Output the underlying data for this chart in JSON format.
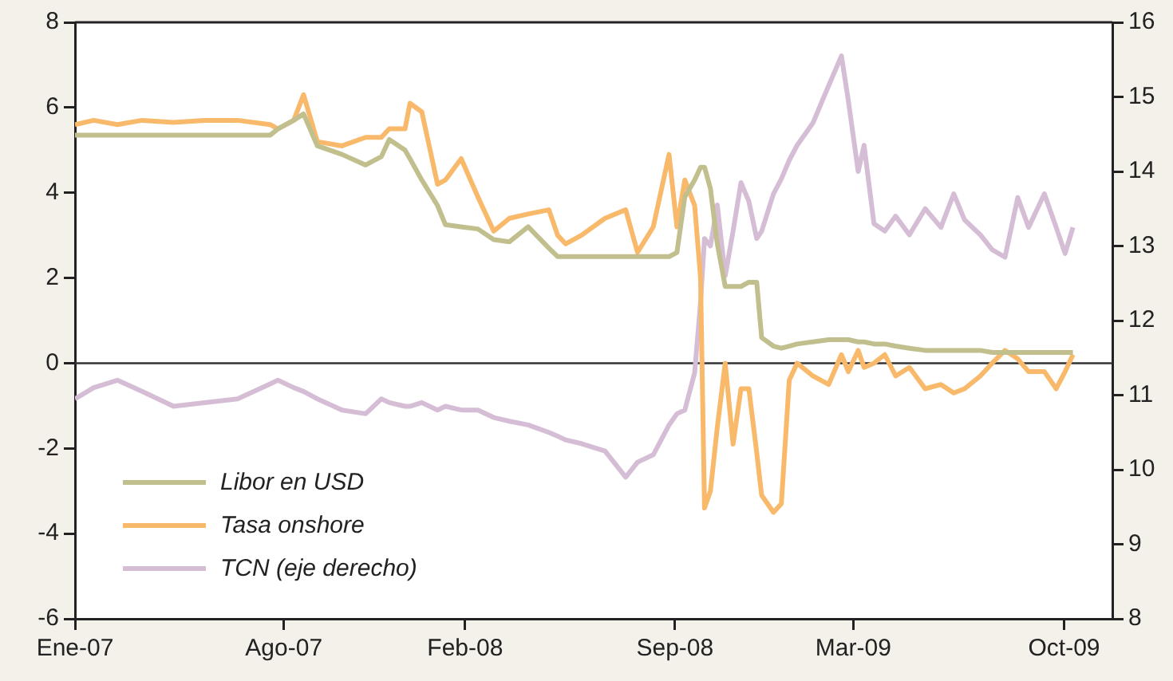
{
  "chart_data": {
    "type": "line",
    "x": [
      "2007-01-01",
      "2007-01-20",
      "2007-02-13",
      "2007-03-10",
      "2007-04-11",
      "2007-05-14",
      "2007-06-15",
      "2007-07-18",
      "2007-07-26",
      "2007-08-11",
      "2007-08-21",
      "2007-09-04",
      "2007-09-29",
      "2007-10-23",
      "2007-11-08",
      "2007-11-16",
      "2007-12-02",
      "2007-12-07",
      "2007-12-19",
      "2008-01-04",
      "2008-01-12",
      "2008-01-28",
      "2008-02-14",
      "2008-03-01",
      "2008-03-17",
      "2008-04-05",
      "2008-04-26",
      "2008-05-05",
      "2008-05-13",
      "2008-05-29",
      "2008-06-22",
      "2008-07-13",
      "2008-07-25",
      "2008-08-10",
      "2008-08-26",
      "2008-09-03",
      "2008-09-11",
      "2008-09-21",
      "2008-09-27",
      "2008-10-01",
      "2008-10-07",
      "2008-10-14",
      "2008-10-22",
      "2008-10-30",
      "2008-11-07",
      "2008-11-15",
      "2008-11-23",
      "2008-11-28",
      "2008-12-10",
      "2008-12-18",
      "2008-12-26",
      "2009-01-03",
      "2009-01-19",
      "2009-02-04",
      "2009-02-17",
      "2009-02-24",
      "2009-03-06",
      "2009-03-12",
      "2009-03-22",
      "2009-04-02",
      "2009-04-13",
      "2009-04-27",
      "2009-05-13",
      "2009-05-29",
      "2009-06-11",
      "2009-06-22",
      "2009-07-08",
      "2009-07-20",
      "2009-08-02",
      "2009-08-15",
      "2009-08-26",
      "2009-09-11",
      "2009-09-23",
      "2009-10-02",
      "2009-10-10"
    ],
    "series": [
      {
        "name": "Libor en USD",
        "color": "#c2bf8e",
        "values": [
          5.35,
          5.35,
          5.35,
          5.35,
          5.35,
          5.35,
          5.35,
          5.35,
          5.5,
          5.7,
          5.85,
          5.1,
          4.9,
          4.65,
          4.85,
          5.25,
          5.0,
          4.8,
          4.3,
          3.7,
          3.25,
          3.2,
          3.15,
          2.9,
          2.85,
          3.2,
          2.7,
          2.5,
          2.5,
          2.5,
          2.5,
          2.5,
          2.5,
          2.5,
          2.5,
          2.6,
          3.9,
          4.3,
          4.6,
          4.6,
          4.1,
          2.8,
          1.8,
          1.8,
          1.8,
          1.9,
          1.9,
          0.6,
          0.4,
          0.35,
          0.4,
          0.45,
          0.5,
          0.55,
          0.55,
          0.55,
          0.5,
          0.5,
          0.45,
          0.45,
          0.4,
          0.35,
          0.3,
          0.3,
          0.3,
          0.3,
          0.3,
          0.25,
          0.25,
          0.25,
          0.25,
          0.25,
          0.25,
          0.25,
          0.25
        ]
      },
      {
        "name": "Tasa onshore",
        "color": "#f9b96b",
        "values": [
          5.6,
          5.7,
          5.6,
          5.7,
          5.65,
          5.7,
          5.7,
          5.6,
          5.5,
          5.7,
          6.3,
          5.2,
          5.1,
          5.3,
          5.3,
          5.5,
          5.5,
          6.1,
          5.9,
          4.2,
          4.3,
          4.8,
          3.9,
          3.1,
          3.4,
          3.5,
          3.6,
          3.0,
          2.8,
          3.0,
          3.4,
          3.6,
          2.6,
          3.2,
          4.9,
          3.2,
          4.3,
          3.7,
          2.0,
          -3.4,
          -3.0,
          -1.5,
          0.0,
          -1.9,
          -0.6,
          -0.6,
          -2.1,
          -3.1,
          -3.5,
          -3.3,
          -0.4,
          0.0,
          -0.3,
          -0.5,
          0.2,
          -0.2,
          0.3,
          -0.1,
          0.0,
          0.2,
          -0.3,
          -0.1,
          -0.6,
          -0.5,
          -0.7,
          -0.6,
          -0.3,
          0.0,
          0.3,
          0.1,
          -0.2,
          -0.2,
          -0.6,
          -0.2,
          0.2
        ]
      },
      {
        "name": "TCN (eje derecho)",
        "color": "#d5bdd5",
        "axis": "y2",
        "values": [
          10.95,
          11.1,
          11.2,
          11.05,
          10.85,
          10.9,
          10.95,
          11.15,
          11.2,
          11.1,
          11.05,
          10.95,
          10.8,
          10.75,
          10.95,
          10.9,
          10.85,
          10.85,
          10.9,
          10.8,
          10.85,
          10.8,
          10.8,
          10.7,
          10.65,
          10.6,
          10.5,
          10.45,
          10.4,
          10.35,
          10.25,
          9.9,
          10.1,
          10.2,
          10.6,
          10.75,
          10.8,
          11.3,
          12.25,
          13.1,
          13.0,
          13.55,
          12.6,
          13.2,
          13.85,
          13.6,
          13.1,
          13.2,
          13.7,
          13.9,
          14.15,
          14.35,
          14.65,
          15.15,
          15.55,
          14.95,
          14.0,
          14.35,
          13.3,
          13.2,
          13.4,
          13.15,
          13.5,
          13.25,
          13.7,
          13.35,
          13.15,
          12.95,
          12.85,
          13.65,
          13.25,
          13.7,
          13.25,
          12.9,
          13.25
        ]
      }
    ],
    "xlim": [
      "2007-01-01",
      "2009-11-19"
    ],
    "xticks": [
      {
        "value": "2007-01-01",
        "label": "Ene-07"
      },
      {
        "value": "2007-08-01",
        "label": "Ago-07"
      },
      {
        "value": "2008-02-01",
        "label": "Feb-08"
      },
      {
        "value": "2008-09-01",
        "label": "Sep-08"
      },
      {
        "value": "2009-03-01",
        "label": "Mar-09"
      },
      {
        "value": "2009-10-01",
        "label": "Oct-09"
      }
    ],
    "ylim": [
      -6,
      8
    ],
    "yticks": [
      -6,
      -4,
      -2,
      0,
      2,
      4,
      6,
      8
    ],
    "y2lim": [
      8,
      16
    ],
    "y2ticks": [
      8,
      9,
      10,
      11,
      12,
      13,
      14,
      15,
      16
    ],
    "ref_lines": [
      {
        "axis": "y",
        "value": 0,
        "color": "#333333"
      }
    ],
    "legend": "bottom left",
    "marker": "none",
    "line_style": "solid"
  }
}
